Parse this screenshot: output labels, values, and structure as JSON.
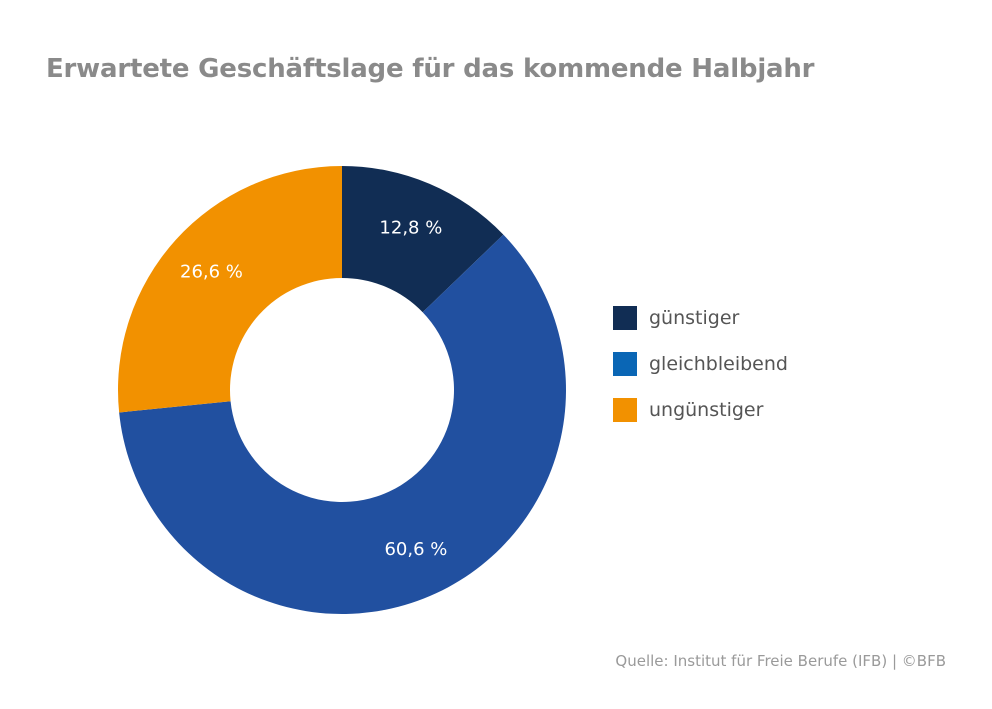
{
  "chart_data": {
    "type": "pie",
    "title": "Erwartete Geschäftslage für das kommende Halbjahr",
    "categories": [
      "günstiger",
      "gleichbleibend",
      "ungünstiger"
    ],
    "values": [
      12.8,
      60.6,
      26.6
    ],
    "value_labels": [
      "12,8 %",
      "60,6 %",
      "26,6 %"
    ],
    "colors": [
      "#112d54",
      "#2150a0",
      "#f29100"
    ],
    "donut": true,
    "legend": {
      "position": "right",
      "items": [
        {
          "label": "günstiger",
          "color": "#112d54"
        },
        {
          "label": "gleichbleibend",
          "color": "#0a66b5"
        },
        {
          "label": "ungünstiger",
          "color": "#f29100"
        }
      ]
    }
  },
  "source": "Quelle: Institut für Freie Berufe (IFB)  |  ©BFB"
}
